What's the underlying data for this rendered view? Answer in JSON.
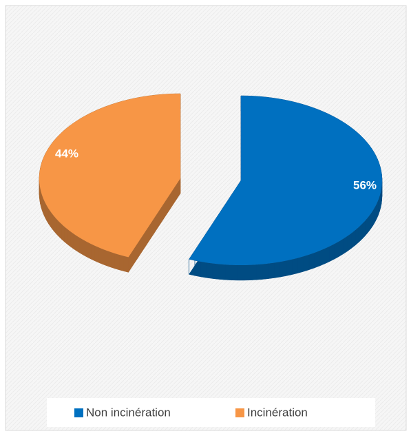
{
  "chart_data": {
    "type": "pie3d",
    "categories": [
      "Non incinération",
      "Incinération"
    ],
    "values": [
      56,
      44
    ],
    "value_labels": [
      "56%",
      "44%"
    ],
    "colors": [
      "#0070c0",
      "#f79646"
    ],
    "legend": "bottom"
  }
}
